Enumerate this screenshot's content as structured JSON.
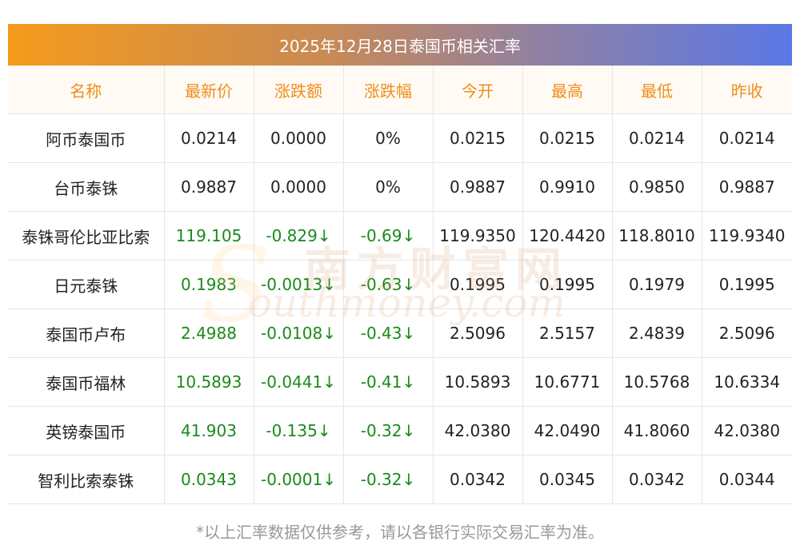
{
  "title": "2025年12月28日泰国币相关汇率",
  "columns": [
    "名称",
    "最新价",
    "涨跌额",
    "涨跌幅",
    "今开",
    "最高",
    "最低",
    "昨收"
  ],
  "rows": [
    {
      "name": "阿币泰国币",
      "latest": "0.0214",
      "change": "0.0000",
      "change_pct": "0%",
      "open": "0.0215",
      "high": "0.0215",
      "low": "0.0214",
      "prev_close": "0.0214",
      "trend": "flat"
    },
    {
      "name": "台币泰铢",
      "latest": "0.9887",
      "change": "0.0000",
      "change_pct": "0%",
      "open": "0.9887",
      "high": "0.9910",
      "low": "0.9850",
      "prev_close": "0.9887",
      "trend": "flat"
    },
    {
      "name": "泰铢哥伦比亚比索",
      "latest": "119.105",
      "change": "-0.829↓",
      "change_pct": "-0.69↓",
      "open": "119.9350",
      "high": "120.4420",
      "low": "118.8010",
      "prev_close": "119.9340",
      "trend": "down"
    },
    {
      "name": "日元泰铢",
      "latest": "0.1983",
      "change": "-0.0013↓",
      "change_pct": "-0.63↓",
      "open": "0.1995",
      "high": "0.1995",
      "low": "0.1979",
      "prev_close": "0.1995",
      "trend": "down"
    },
    {
      "name": "泰国币卢布",
      "latest": "2.4988",
      "change": "-0.0108↓",
      "change_pct": "-0.43↓",
      "open": "2.5096",
      "high": "2.5157",
      "low": "2.4839",
      "prev_close": "2.5096",
      "trend": "down"
    },
    {
      "name": "泰国币福林",
      "latest": "10.5893",
      "change": "-0.0441↓",
      "change_pct": "-0.41↓",
      "open": "10.5893",
      "high": "10.6771",
      "low": "10.5768",
      "prev_close": "10.6334",
      "trend": "down"
    },
    {
      "name": "英镑泰国币",
      "latest": "41.903",
      "change": "-0.135↓",
      "change_pct": "-0.32↓",
      "open": "42.0380",
      "high": "42.0490",
      "low": "41.8060",
      "prev_close": "42.0380",
      "trend": "down"
    },
    {
      "name": "智利比索泰铢",
      "latest": "0.0343",
      "change": "-0.0001↓",
      "change_pct": "-0.32↓",
      "open": "0.0342",
      "high": "0.0345",
      "low": "0.0342",
      "prev_close": "0.0344",
      "trend": "down"
    }
  ],
  "watermark": {
    "cn": "南方财富网",
    "en": "outhmoney.com",
    "s": "S"
  },
  "footnote": "*以上汇率数据仅供参考，请以各银行实际交易汇率为准。",
  "colors": {
    "header_text": "#f08c1a",
    "down": "#1a8a1a",
    "gradient_start": "#f59a1b",
    "gradient_end": "#5a78e6"
  }
}
